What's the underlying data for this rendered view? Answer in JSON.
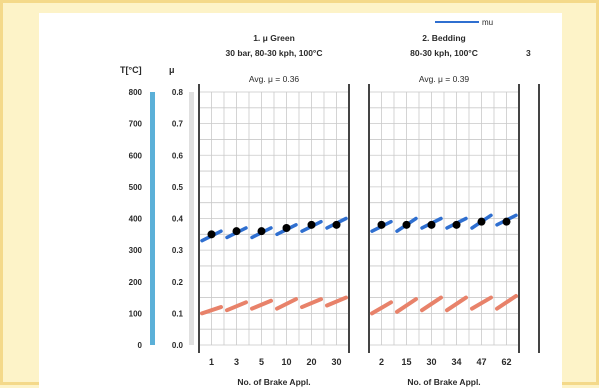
{
  "chart_data": {
    "type": "line",
    "legend": {
      "entries": [
        "mu"
      ],
      "placement": "top-right"
    },
    "colors": {
      "mu": "#2f6fd0",
      "marker": "#000000",
      "temperature": "#e8826a",
      "grid": "#c9c9c9",
      "ruler_t": "#5bb0d8",
      "ruler_mu": "#e0e0e0"
    },
    "y_axes": {
      "temperature": {
        "label": "T[°C]",
        "ticks": [
          800,
          700,
          600,
          500,
          400,
          300,
          200,
          100,
          0
        ],
        "range": [
          0,
          800
        ]
      },
      "mu": {
        "label": "μ",
        "ticks": [
          "0.8",
          "0.7",
          "0.6",
          "0.5",
          "0.4",
          "0.3",
          "0.2",
          "0.1",
          "0.0"
        ],
        "range": [
          0,
          0.8
        ]
      }
    },
    "panels": [
      {
        "title_lines": [
          "1. μ Green",
          "30 bar, 80-30 kph, 100°C"
        ],
        "avg": "Avg. μ = 0.36",
        "xlabel": "No. of Brake Appl.",
        "x_ticks": [
          "1",
          "3",
          "5",
          "10",
          "20",
          "30"
        ],
        "mu_segments": [
          [
            0.33,
            0.36
          ],
          [
            0.34,
            0.37
          ],
          [
            0.34,
            0.37
          ],
          [
            0.35,
            0.38
          ],
          [
            0.36,
            0.39
          ],
          [
            0.37,
            0.4
          ]
        ],
        "mu_points": [
          0.35,
          0.36,
          0.36,
          0.37,
          0.38,
          0.38
        ],
        "temperature_segments": [
          [
            100,
            120
          ],
          [
            110,
            135
          ],
          [
            115,
            140
          ],
          [
            115,
            145
          ],
          [
            120,
            145
          ],
          [
            125,
            150
          ]
        ]
      },
      {
        "title_lines": [
          "2. Bedding",
          "80-30 kph, 100°C"
        ],
        "avg": "Avg. μ = 0.39",
        "xlabel": "No. of Brake Appl.",
        "x_ticks": [
          "2",
          "15",
          "30",
          "34",
          "47",
          "62"
        ],
        "mu_segments": [
          [
            0.36,
            0.39
          ],
          [
            0.36,
            0.4
          ],
          [
            0.37,
            0.4
          ],
          [
            0.37,
            0.4
          ],
          [
            0.37,
            0.41
          ],
          [
            0.38,
            0.41
          ]
        ],
        "mu_points": [
          0.38,
          0.38,
          0.38,
          0.38,
          0.39,
          0.39
        ],
        "temperature_segments": [
          [
            100,
            135
          ],
          [
            105,
            145
          ],
          [
            110,
            150
          ],
          [
            110,
            150
          ],
          [
            115,
            150
          ],
          [
            115,
            155
          ]
        ]
      }
    ],
    "third_panel_hint": "3"
  }
}
